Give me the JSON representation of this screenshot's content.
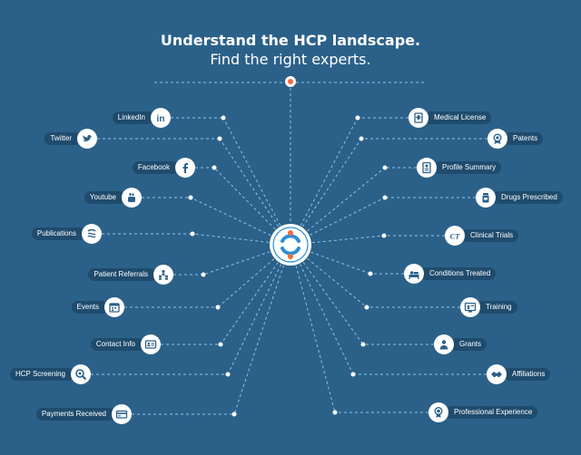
{
  "headline": {
    "line1": "Understand the HCP landscape.",
    "line2": "Find the right experts."
  },
  "colors": {
    "background": "#2b6189",
    "label_bg": "#1f4b6d",
    "line": "#8cc2e6",
    "hub_ring": "#ffffff",
    "hub_blue": "#2b8fd6",
    "hub_orange": "#f26b3a"
  },
  "left_nodes": [
    {
      "label": "LinkedIn",
      "icon": "linkedin-icon"
    },
    {
      "label": "Twitter",
      "icon": "twitter-icon"
    },
    {
      "label": "Facebook",
      "icon": "facebook-icon"
    },
    {
      "label": "Youtube",
      "icon": "youtube-icon"
    },
    {
      "label": "Publications",
      "icon": "publications-icon"
    },
    {
      "label": "Patient Referrals",
      "icon": "referrals-icon"
    },
    {
      "label": "Events",
      "icon": "calendar-icon"
    },
    {
      "label": "Contact Info",
      "icon": "contact-card-icon"
    },
    {
      "label": "HCP Screening",
      "icon": "screening-icon"
    },
    {
      "label": "Payments Received",
      "icon": "payment-card-icon"
    }
  ],
  "right_nodes": [
    {
      "label": "Medical License",
      "icon": "license-icon"
    },
    {
      "label": "Patents",
      "icon": "patent-icon"
    },
    {
      "label": "Profile Summary",
      "icon": "profile-icon"
    },
    {
      "label": "Drugs Prescribed",
      "icon": "drugs-icon"
    },
    {
      "label": "Clinical Trials",
      "icon": "clinical-trials-icon",
      "glyph": "CT"
    },
    {
      "label": "Conditions Treated",
      "icon": "conditions-icon"
    },
    {
      "label": "Training",
      "icon": "training-icon"
    },
    {
      "label": "Grants",
      "icon": "grants-icon"
    },
    {
      "label": "Affiliations",
      "icon": "handshake-icon"
    },
    {
      "label": "Professional Experience",
      "icon": "experience-icon"
    }
  ]
}
